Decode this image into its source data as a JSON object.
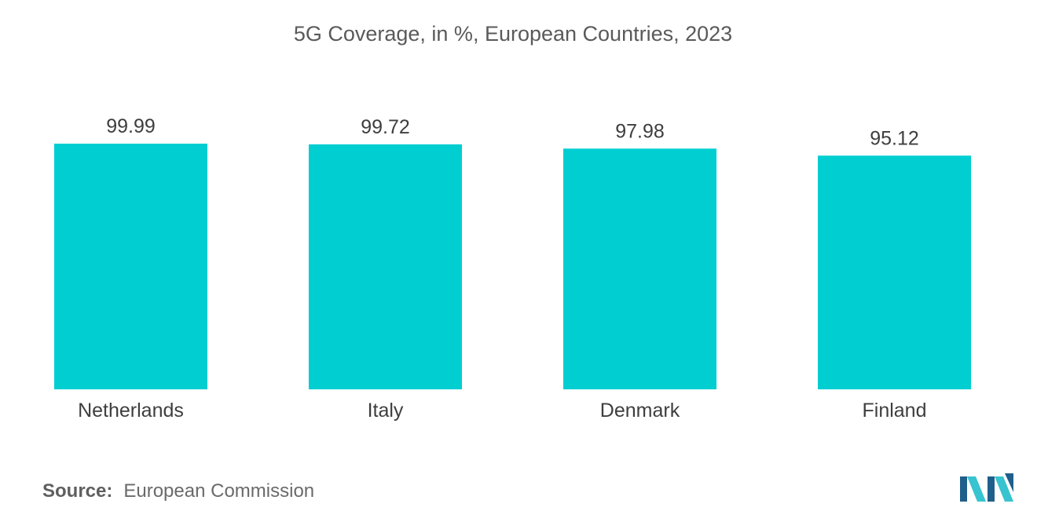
{
  "colors": {
    "bar": "#00CED1",
    "text": "#3e3e3e",
    "title": "#5a5a5a",
    "logo_dark": "#1f5f8b",
    "logo_light": "#37c3cf"
  },
  "chart_data": {
    "type": "bar",
    "title": "5G Coverage, in %, European Countries, 2023",
    "xlabel": "",
    "ylabel": "",
    "categories": [
      "Netherlands",
      "Italy",
      "Denmark",
      "Finland"
    ],
    "values": [
      99.99,
      99.72,
      97.98,
      95.12
    ],
    "value_labels": [
      "99.99",
      "99.72",
      "97.98",
      "95.12"
    ],
    "ylim": [
      0,
      100
    ],
    "grid": false,
    "legend": "none"
  },
  "footer": {
    "source_label": "Source:",
    "source_value": "European Commission"
  },
  "logo": {
    "icon": "mordor-intelligence-logo-icon"
  }
}
